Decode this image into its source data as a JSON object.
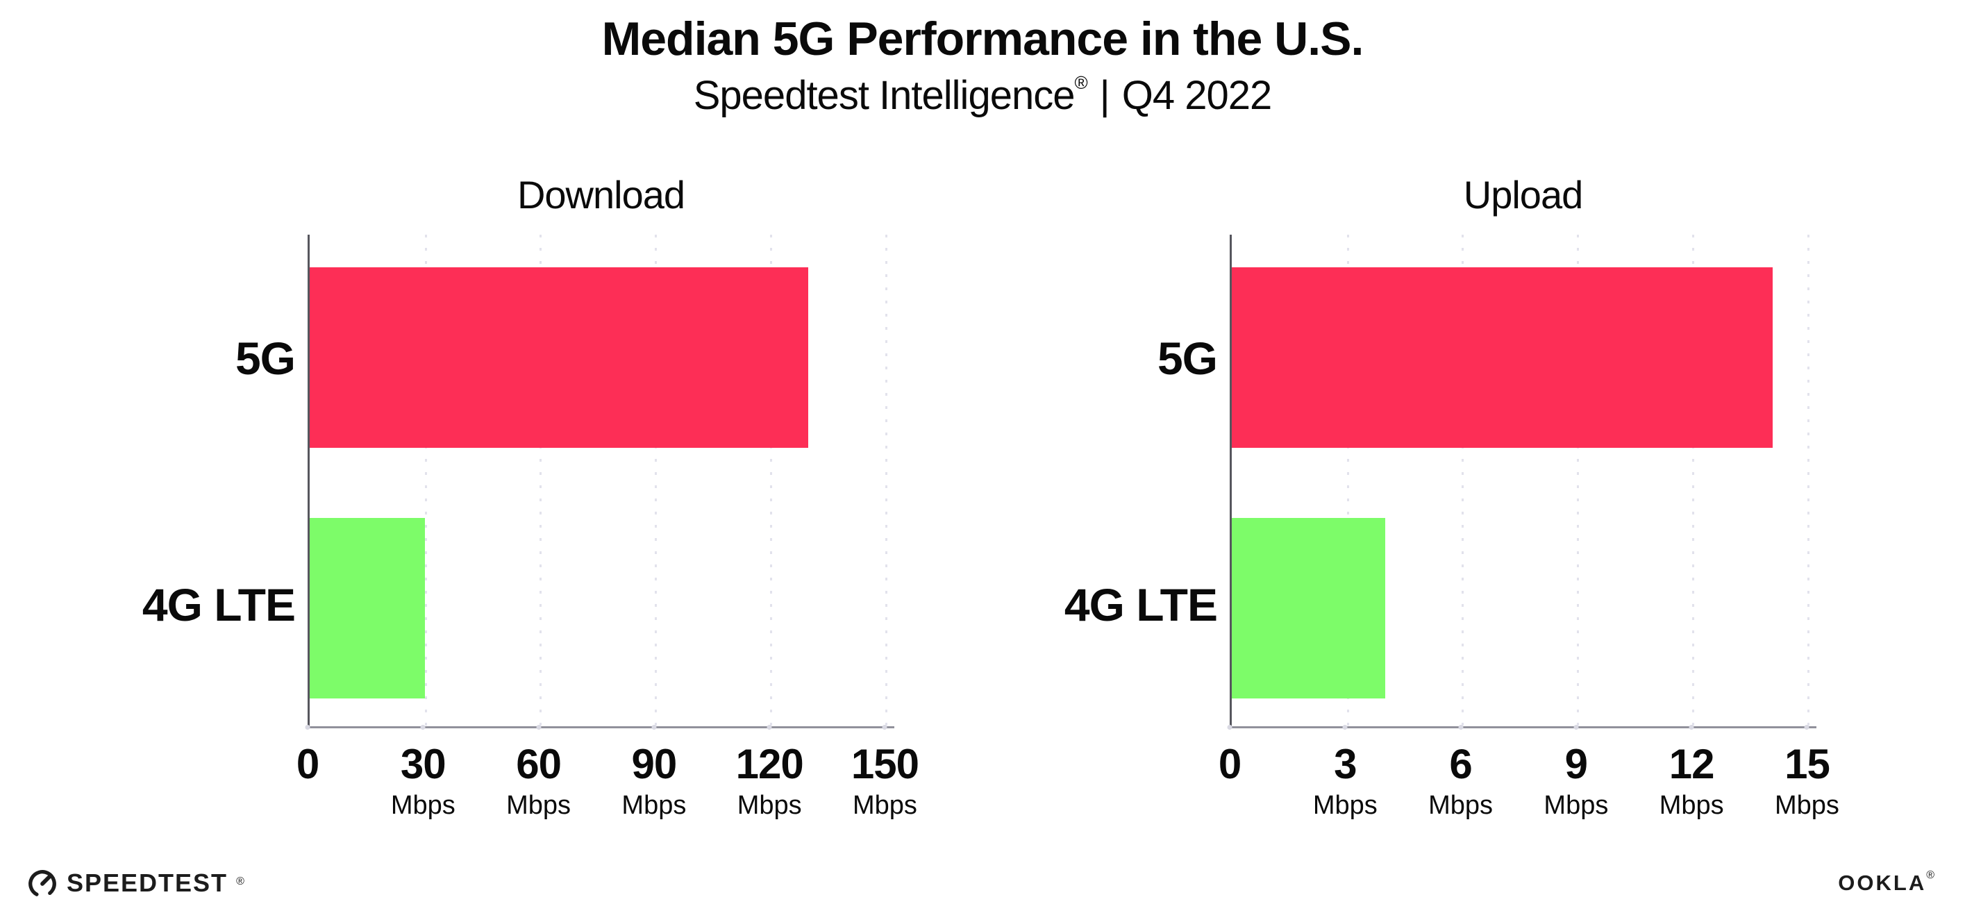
{
  "header": {
    "title": "Median 5G Performance in the U.S.",
    "subtitle": {
      "brand": "Speedtest Intelligence",
      "registered_mark": "®",
      "separator": "|",
      "period": "Q4 2022"
    }
  },
  "chart_data": [
    {
      "type": "bar",
      "orientation": "horizontal",
      "title": "Download",
      "categories": [
        "5G",
        "4G LTE"
      ],
      "values": [
        130,
        30
      ],
      "unit": "Mbps",
      "xlim": [
        0,
        150
      ],
      "xticks": [
        0,
        30,
        60,
        90,
        120,
        150
      ],
      "show_unit_on_zero_tick": false,
      "bar_colors": [
        "#FD2E56",
        "#7DFC69"
      ],
      "grid": "vertical-dotted",
      "legend": "none"
    },
    {
      "type": "bar",
      "orientation": "horizontal",
      "title": "Upload",
      "categories": [
        "5G",
        "4G LTE"
      ],
      "values": [
        14.1,
        4
      ],
      "unit": "Mbps",
      "xlim": [
        0,
        15
      ],
      "xticks": [
        0,
        3,
        6,
        9,
        12,
        15
      ],
      "show_unit_on_zero_tick": false,
      "bar_colors": [
        "#FD2E56",
        "#7DFC69"
      ],
      "grid": "vertical-dotted",
      "legend": "none"
    }
  ],
  "footer": {
    "speedtest_logo": {
      "text": "SPEEDTEST",
      "mark": "®"
    },
    "ookla_logo": {
      "text": "OOKLA",
      "mark": "®"
    }
  },
  "colors": {
    "bar_5g": "#FD2E56",
    "bar_4g_lte": "#7DFC69",
    "y_axis_line": "#56565E",
    "x_axis_line": "#91919B",
    "gridline": "#E2E2EC",
    "text": "#0A0A0A"
  }
}
